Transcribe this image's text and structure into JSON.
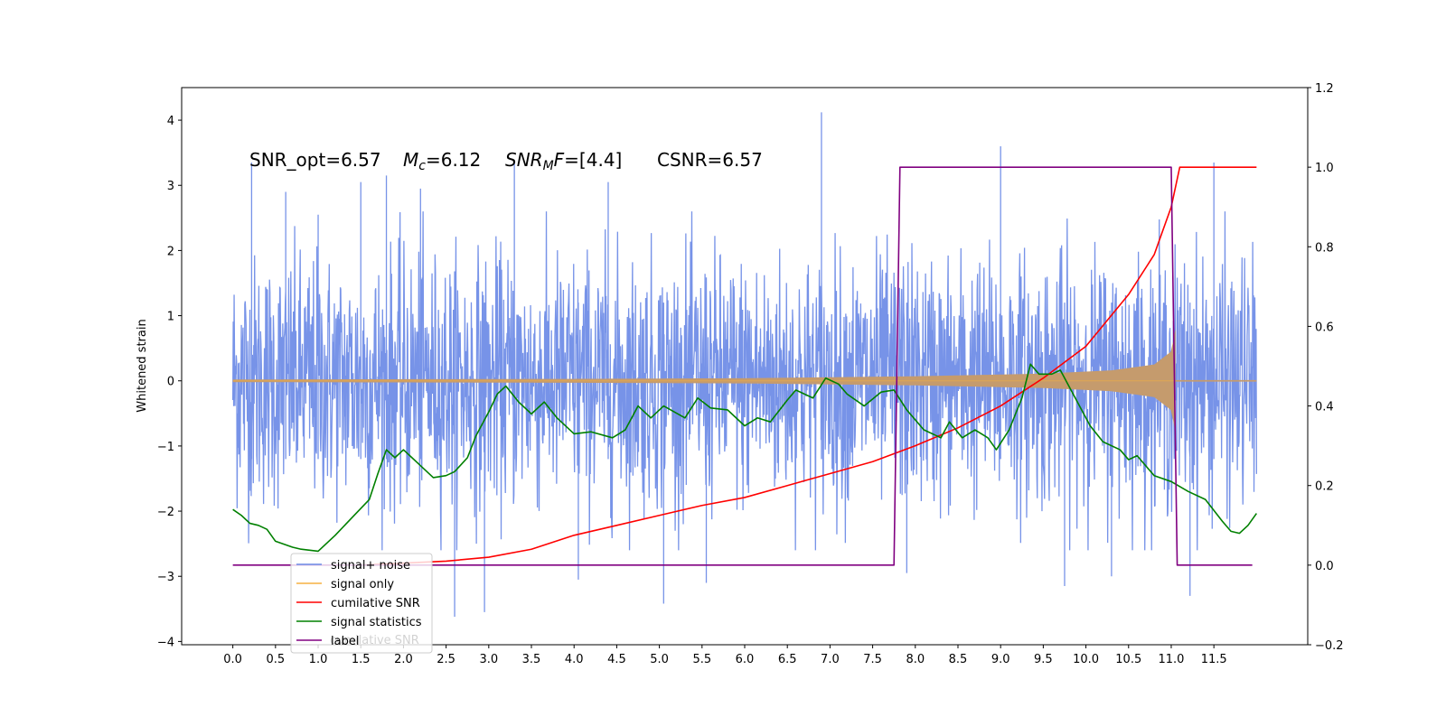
{
  "chart_data": {
    "type": "line",
    "title": "",
    "annotation": {
      "snr_opt": "SNR_opt=6.57",
      "mc_symbol": "M",
      "mc_sub": "c",
      "mc_value": "=6.12",
      "snrmf_symbol": "SNR",
      "snrmf_sub": "M",
      "snrmf_f": "F",
      "snrmf_value": "=[4.4]",
      "csnr": "CSNR=6.57"
    },
    "xlabel": "",
    "ylabel": "Whitened strain",
    "y2label": "",
    "xlim": [
      -0.6,
      12.6
    ],
    "ylim": [
      -4.05,
      4.5
    ],
    "y2lim": [
      -0.2,
      1.2
    ],
    "xticks": [
      0.0,
      0.5,
      1.0,
      1.5,
      2.0,
      2.5,
      3.0,
      3.5,
      4.0,
      4.5,
      5.0,
      5.5,
      6.0,
      6.5,
      7.0,
      7.5,
      8.0,
      8.5,
      9.0,
      9.5,
      10.0,
      10.5,
      11.0,
      11.5
    ],
    "xtick_labels": [
      "0.0",
      "0.5",
      "1.0",
      "1.5",
      "2.0",
      "2.5",
      "3.0",
      "3.5",
      "4.0",
      "4.5",
      "5.0",
      "5.5",
      "6.0",
      "6.5",
      "7.0",
      "7.5",
      "8.0",
      "8.5",
      "9.0",
      "9.5",
      "10.0",
      "10.5",
      "11.0",
      "11.5"
    ],
    "yticks": [
      -4,
      -3,
      -2,
      -1,
      0,
      1,
      2,
      3,
      4
    ],
    "ytick_labels": [
      "−4",
      "−3",
      "−2",
      "−1",
      "0",
      "1",
      "2",
      "3",
      "4"
    ],
    "y2ticks": [
      -0.2,
      0.0,
      0.2,
      0.4,
      0.6,
      0.8,
      1.0,
      1.2
    ],
    "y2tick_labels": [
      "−0.2",
      "0.0",
      "0.2",
      "0.4",
      "0.6",
      "0.8",
      "1.0",
      "1.2"
    ],
    "grid": false,
    "legend_position": "lower-left",
    "colors": {
      "noise": "#6b8ae6",
      "signal": "#f5b041",
      "signal_fill": "#c59b6d",
      "cumulative": "#ff0000",
      "statistics": "#008000",
      "label": "#800080"
    },
    "series": [
      {
        "name": "signal+ noise",
        "axis": "left",
        "description_values": "dense noise between about -2.5 and 2.5 with spikes",
        "x_range": [
          0.0,
          12.0
        ],
        "spikes": [
          {
            "x": 0.22,
            "y": 3.35
          },
          {
            "x": 0.62,
            "y": 2.9
          },
          {
            "x": 1.0,
            "y": 2.55
          },
          {
            "x": 1.5,
            "y": 3.05
          },
          {
            "x": 1.8,
            "y": 3.15
          },
          {
            "x": 2.2,
            "y": 2.95
          },
          {
            "x": 3.3,
            "y": 3.35
          },
          {
            "x": 4.4,
            "y": 3.05
          },
          {
            "x": 6.9,
            "y": 4.12
          },
          {
            "x": 9.0,
            "y": 3.6
          },
          {
            "x": 11.5,
            "y": 3.35
          },
          {
            "x": 2.6,
            "y": -3.62
          },
          {
            "x": 2.95,
            "y": -3.55
          },
          {
            "x": 5.05,
            "y": -3.42
          },
          {
            "x": 5.55,
            "y": -3.1
          },
          {
            "x": 9.75,
            "y": -3.15
          },
          {
            "x": 11.22,
            "y": -3.3
          },
          {
            "x": 10.3,
            "y": -3.0
          },
          {
            "x": 7.9,
            "y": -2.95
          },
          {
            "x": 4.05,
            "y": -3.05
          }
        ]
      },
      {
        "name": "signal only",
        "axis": "left",
        "x_range": [
          0.0,
          12.0
        ],
        "chirp_end": 11.05,
        "envelope": [
          {
            "x": 0.0,
            "y": 0.02
          },
          {
            "x": 4.0,
            "y": 0.03
          },
          {
            "x": 6.0,
            "y": 0.04
          },
          {
            "x": 8.0,
            "y": 0.07
          },
          {
            "x": 9.5,
            "y": 0.11
          },
          {
            "x": 10.3,
            "y": 0.16
          },
          {
            "x": 10.8,
            "y": 0.25
          },
          {
            "x": 11.0,
            "y": 0.45
          },
          {
            "x": 11.05,
            "y": 0.8
          }
        ]
      },
      {
        "name": "cumilative SNR",
        "axis": "right",
        "points": [
          {
            "x": 1.5,
            "y": 0.0
          },
          {
            "x": 2.5,
            "y": 0.01
          },
          {
            "x": 3.0,
            "y": 0.02
          },
          {
            "x": 3.5,
            "y": 0.04
          },
          {
            "x": 4.0,
            "y": 0.075
          },
          {
            "x": 4.5,
            "y": 0.1
          },
          {
            "x": 5.0,
            "y": 0.125
          },
          {
            "x": 5.5,
            "y": 0.15
          },
          {
            "x": 6.0,
            "y": 0.17
          },
          {
            "x": 6.5,
            "y": 0.2
          },
          {
            "x": 7.0,
            "y": 0.23
          },
          {
            "x": 7.5,
            "y": 0.26
          },
          {
            "x": 8.0,
            "y": 0.3
          },
          {
            "x": 8.5,
            "y": 0.345
          },
          {
            "x": 9.0,
            "y": 0.4
          },
          {
            "x": 9.5,
            "y": 0.47
          },
          {
            "x": 10.0,
            "y": 0.55
          },
          {
            "x": 10.5,
            "y": 0.68
          },
          {
            "x": 10.8,
            "y": 0.78
          },
          {
            "x": 11.0,
            "y": 0.9
          },
          {
            "x": 11.1,
            "y": 1.0
          },
          {
            "x": 12.0,
            "y": 1.0
          }
        ]
      },
      {
        "name": "signal statistics",
        "axis": "right",
        "points": [
          {
            "x": 0.0,
            "y": 0.14
          },
          {
            "x": 0.1,
            "y": 0.125
          },
          {
            "x": 0.2,
            "y": 0.105
          },
          {
            "x": 0.3,
            "y": 0.1
          },
          {
            "x": 0.4,
            "y": 0.09
          },
          {
            "x": 0.5,
            "y": 0.06
          },
          {
            "x": 0.7,
            "y": 0.045
          },
          {
            "x": 0.8,
            "y": 0.04
          },
          {
            "x": 1.0,
            "y": 0.035
          },
          {
            "x": 1.2,
            "y": 0.075
          },
          {
            "x": 1.4,
            "y": 0.12
          },
          {
            "x": 1.6,
            "y": 0.165
          },
          {
            "x": 1.7,
            "y": 0.23
          },
          {
            "x": 1.8,
            "y": 0.29
          },
          {
            "x": 1.9,
            "y": 0.27
          },
          {
            "x": 2.0,
            "y": 0.29
          },
          {
            "x": 2.1,
            "y": 0.27
          },
          {
            "x": 2.2,
            "y": 0.25
          },
          {
            "x": 2.35,
            "y": 0.22
          },
          {
            "x": 2.5,
            "y": 0.225
          },
          {
            "x": 2.6,
            "y": 0.235
          },
          {
            "x": 2.75,
            "y": 0.27
          },
          {
            "x": 2.85,
            "y": 0.325
          },
          {
            "x": 3.0,
            "y": 0.385
          },
          {
            "x": 3.1,
            "y": 0.43
          },
          {
            "x": 3.2,
            "y": 0.45
          },
          {
            "x": 3.35,
            "y": 0.41
          },
          {
            "x": 3.5,
            "y": 0.38
          },
          {
            "x": 3.65,
            "y": 0.41
          },
          {
            "x": 3.8,
            "y": 0.37
          },
          {
            "x": 4.0,
            "y": 0.33
          },
          {
            "x": 4.2,
            "y": 0.335
          },
          {
            "x": 4.45,
            "y": 0.32
          },
          {
            "x": 4.6,
            "y": 0.34
          },
          {
            "x": 4.75,
            "y": 0.4
          },
          {
            "x": 4.9,
            "y": 0.37
          },
          {
            "x": 5.05,
            "y": 0.4
          },
          {
            "x": 5.3,
            "y": 0.37
          },
          {
            "x": 5.45,
            "y": 0.42
          },
          {
            "x": 5.6,
            "y": 0.395
          },
          {
            "x": 5.8,
            "y": 0.39
          },
          {
            "x": 6.0,
            "y": 0.35
          },
          {
            "x": 6.15,
            "y": 0.37
          },
          {
            "x": 6.3,
            "y": 0.36
          },
          {
            "x": 6.5,
            "y": 0.415
          },
          {
            "x": 6.6,
            "y": 0.44
          },
          {
            "x": 6.8,
            "y": 0.42
          },
          {
            "x": 6.95,
            "y": 0.47
          },
          {
            "x": 7.1,
            "y": 0.455
          },
          {
            "x": 7.2,
            "y": 0.43
          },
          {
            "x": 7.4,
            "y": 0.4
          },
          {
            "x": 7.6,
            "y": 0.435
          },
          {
            "x": 7.75,
            "y": 0.44
          },
          {
            "x": 7.9,
            "y": 0.39
          },
          {
            "x": 8.1,
            "y": 0.34
          },
          {
            "x": 8.3,
            "y": 0.32
          },
          {
            "x": 8.4,
            "y": 0.36
          },
          {
            "x": 8.55,
            "y": 0.32
          },
          {
            "x": 8.7,
            "y": 0.34
          },
          {
            "x": 8.85,
            "y": 0.32
          },
          {
            "x": 8.95,
            "y": 0.29
          },
          {
            "x": 9.1,
            "y": 0.34
          },
          {
            "x": 9.25,
            "y": 0.42
          },
          {
            "x": 9.35,
            "y": 0.505
          },
          {
            "x": 9.45,
            "y": 0.48
          },
          {
            "x": 9.6,
            "y": 0.48
          },
          {
            "x": 9.7,
            "y": 0.49
          },
          {
            "x": 9.85,
            "y": 0.43
          },
          {
            "x": 10.05,
            "y": 0.35
          },
          {
            "x": 10.2,
            "y": 0.31
          },
          {
            "x": 10.4,
            "y": 0.29
          },
          {
            "x": 10.5,
            "y": 0.265
          },
          {
            "x": 10.6,
            "y": 0.275
          },
          {
            "x": 10.8,
            "y": 0.225
          },
          {
            "x": 11.0,
            "y": 0.21
          },
          {
            "x": 11.2,
            "y": 0.185
          },
          {
            "x": 11.4,
            "y": 0.165
          },
          {
            "x": 11.6,
            "y": 0.11
          },
          {
            "x": 11.7,
            "y": 0.085
          },
          {
            "x": 11.8,
            "y": 0.08
          },
          {
            "x": 11.9,
            "y": 0.1
          },
          {
            "x": 12.0,
            "y": 0.13
          }
        ]
      },
      {
        "name": "label",
        "axis": "right",
        "points": [
          {
            "x": 0.0,
            "y": 0.0
          },
          {
            "x": 7.75,
            "y": 0.0
          },
          {
            "x": 7.82,
            "y": 1.0
          },
          {
            "x": 11.0,
            "y": 1.0
          },
          {
            "x": 11.07,
            "y": 0.0
          },
          {
            "x": 11.95,
            "y": 0.0
          }
        ]
      }
    ],
    "legend": [
      {
        "label": "signal+ noise",
        "color": "#6b8ae6"
      },
      {
        "label": "signal only",
        "color": "#f5b041"
      },
      {
        "label": "cumilative SNR",
        "color": "#ff0000"
      },
      {
        "label": "signal statistics",
        "color": "#008000"
      },
      {
        "label": "label",
        "color": "#800080"
      }
    ],
    "legend_ghost_text": "cumilative SNR"
  }
}
